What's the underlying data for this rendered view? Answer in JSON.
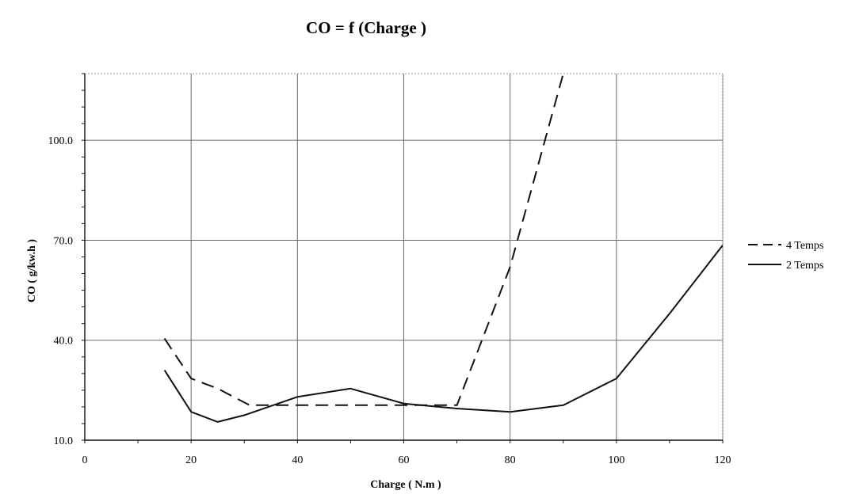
{
  "chart_data": {
    "type": "line",
    "title": "CO = f (Charge )",
    "xlabel": "Charge ( N.m )",
    "ylabel": "CO ( g/kw.h )",
    "xlim": [
      0,
      120
    ],
    "ylim": [
      10,
      120
    ],
    "x_ticks": [
      "0",
      "20",
      "40",
      "60",
      "80",
      "100",
      "120"
    ],
    "y_ticks": [
      "10.0",
      "40.0",
      "70.0",
      "100.0"
    ],
    "grid": true,
    "legend_position": "right",
    "series": [
      {
        "name": "4 Temps",
        "style": "dashed",
        "color": "#111111",
        "points": [
          [
            15,
            40.5
          ],
          [
            20,
            28.5
          ],
          [
            25,
            25.5
          ],
          [
            31,
            20.5
          ],
          [
            70,
            20.5
          ],
          [
            80,
            62
          ],
          [
            90,
            120
          ]
        ]
      },
      {
        "name": "2 Temps",
        "style": "solid",
        "color": "#111111",
        "points": [
          [
            15,
            31
          ],
          [
            20,
            18.5
          ],
          [
            25,
            15.5
          ],
          [
            30,
            17.5
          ],
          [
            40,
            23
          ],
          [
            50,
            25.5
          ],
          [
            60,
            21
          ],
          [
            70,
            19.5
          ],
          [
            80,
            18.5
          ],
          [
            90,
            20.5
          ],
          [
            100,
            28.5
          ],
          [
            110,
            48
          ],
          [
            120,
            68.5
          ]
        ]
      }
    ]
  }
}
